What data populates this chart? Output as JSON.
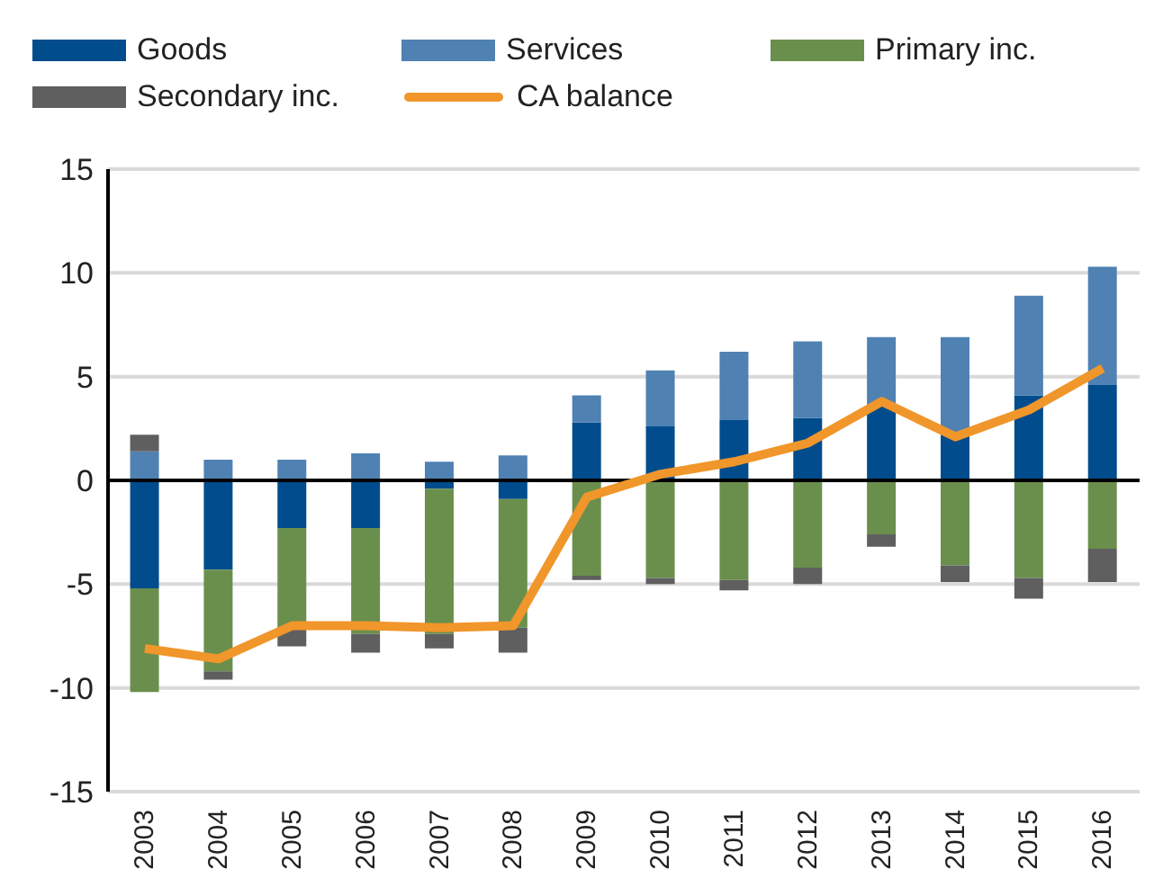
{
  "chart_data": {
    "type": "bar",
    "stacked": true,
    "categories": [
      "2003",
      "2004",
      "2005",
      "2006",
      "2007",
      "2008",
      "2009",
      "2010",
      "2011",
      "2012",
      "2013",
      "2014",
      "2015",
      "2016"
    ],
    "series": [
      {
        "name": "Goods",
        "color": "#004c8c",
        "values": [
          -5.2,
          -4.3,
          -2.3,
          -2.3,
          -0.4,
          -0.9,
          2.8,
          2.6,
          2.9,
          3.0,
          3.6,
          2.2,
          4.1,
          4.6
        ]
      },
      {
        "name": "Services",
        "color": "#4f81b3",
        "values": [
          1.4,
          1.0,
          1.0,
          1.3,
          0.9,
          1.2,
          1.3,
          2.7,
          3.3,
          3.7,
          3.3,
          4.7,
          4.8,
          5.7
        ]
      },
      {
        "name": "Primary inc.",
        "color": "#6a8f4c",
        "values": [
          -5.0,
          -4.9,
          -4.8,
          -5.1,
          -7.0,
          -6.2,
          -4.6,
          -4.7,
          -4.8,
          -4.2,
          -2.6,
          -4.1,
          -4.7,
          -3.3
        ]
      },
      {
        "name": "Secondary inc.",
        "color": "#5f5f5f",
        "values": [
          0.8,
          -0.4,
          -0.9,
          -0.9,
          -0.7,
          -1.2,
          -0.2,
          -0.3,
          -0.5,
          -0.8,
          -0.6,
          -0.8,
          -1.0,
          -1.6
        ]
      },
      {
        "name": "CA balance",
        "type": "line",
        "color": "#f0962a",
        "values": [
          -8.1,
          -8.6,
          -7.0,
          -7.0,
          -7.1,
          -7.0,
          -0.8,
          0.3,
          0.9,
          1.8,
          3.8,
          2.1,
          3.4,
          5.4
        ]
      }
    ],
    "ylim": [
      -15,
      15
    ],
    "yticks": [
      -15,
      -10,
      -5,
      0,
      5,
      10,
      15
    ],
    "grid": "y",
    "legend": "top",
    "marker": "none",
    "ref_lines": [
      {
        "axis": "y",
        "value": 0,
        "color": "#000000"
      }
    ]
  }
}
